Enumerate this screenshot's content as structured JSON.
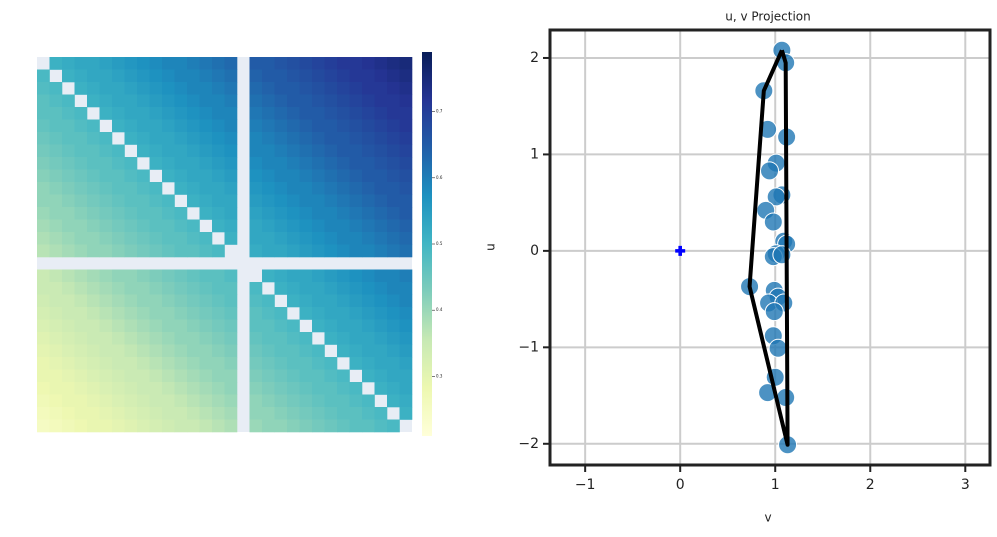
{
  "chart_data": [
    {
      "type": "heatmap",
      "colormap": "YlGnBu",
      "null_color": "#e8edf5",
      "zlim": [
        0.21,
        0.79
      ],
      "zticks": [
        0.3,
        0.4,
        0.5,
        0.6,
        0.7
      ],
      "values": [
        [
          null,
          0.51,
          0.52,
          0.53,
          0.53,
          0.54,
          0.55,
          0.56,
          0.57,
          0.58,
          0.59,
          0.59,
          0.6,
          0.61,
          0.62,
          0.63,
          null,
          0.65,
          0.65,
          0.66,
          0.67,
          0.68,
          0.69,
          0.7,
          0.71,
          0.71,
          0.72,
          0.73,
          0.74,
          0.75
        ],
        [
          0.49,
          null,
          0.51,
          0.52,
          0.53,
          0.53,
          0.54,
          0.55,
          0.56,
          0.57,
          0.58,
          0.59,
          0.59,
          0.6,
          0.61,
          0.62,
          null,
          0.64,
          0.65,
          0.65,
          0.66,
          0.67,
          0.68,
          0.69,
          0.7,
          0.71,
          0.71,
          0.72,
          0.73,
          0.74
        ],
        [
          0.48,
          0.49,
          null,
          0.51,
          0.52,
          0.53,
          0.53,
          0.54,
          0.55,
          0.56,
          0.57,
          0.58,
          0.59,
          0.59,
          0.6,
          0.61,
          null,
          0.63,
          0.64,
          0.65,
          0.65,
          0.66,
          0.67,
          0.68,
          0.69,
          0.7,
          0.71,
          0.71,
          0.72,
          0.73
        ],
        [
          0.47,
          0.48,
          0.49,
          null,
          0.51,
          0.52,
          0.53,
          0.53,
          0.54,
          0.55,
          0.56,
          0.57,
          0.58,
          0.59,
          0.59,
          0.6,
          null,
          0.62,
          0.63,
          0.64,
          0.65,
          0.65,
          0.66,
          0.67,
          0.68,
          0.69,
          0.7,
          0.71,
          0.71,
          0.72
        ],
        [
          0.47,
          0.47,
          0.48,
          0.49,
          null,
          0.51,
          0.52,
          0.53,
          0.53,
          0.54,
          0.55,
          0.56,
          0.57,
          0.58,
          0.59,
          0.59,
          null,
          0.61,
          0.62,
          0.63,
          0.64,
          0.65,
          0.65,
          0.66,
          0.67,
          0.68,
          0.69,
          0.7,
          0.71,
          0.71
        ],
        [
          0.46,
          0.47,
          0.47,
          0.48,
          0.49,
          null,
          0.51,
          0.52,
          0.53,
          0.53,
          0.54,
          0.55,
          0.56,
          0.57,
          0.58,
          0.59,
          null,
          0.6,
          0.61,
          0.62,
          0.63,
          0.64,
          0.65,
          0.65,
          0.66,
          0.67,
          0.68,
          0.69,
          0.7,
          0.71
        ],
        [
          0.45,
          0.46,
          0.47,
          0.47,
          0.48,
          0.49,
          null,
          0.51,
          0.52,
          0.53,
          0.53,
          0.54,
          0.55,
          0.56,
          0.57,
          0.58,
          null,
          0.59,
          0.6,
          0.61,
          0.62,
          0.63,
          0.64,
          0.65,
          0.65,
          0.66,
          0.67,
          0.68,
          0.69,
          0.7
        ],
        [
          0.44,
          0.45,
          0.46,
          0.47,
          0.47,
          0.48,
          0.49,
          null,
          0.51,
          0.52,
          0.53,
          0.53,
          0.54,
          0.55,
          0.56,
          0.57,
          null,
          0.59,
          0.59,
          0.6,
          0.61,
          0.62,
          0.63,
          0.64,
          0.65,
          0.65,
          0.66,
          0.67,
          0.68,
          0.69
        ],
        [
          0.43,
          0.44,
          0.45,
          0.46,
          0.47,
          0.47,
          0.48,
          0.49,
          null,
          0.51,
          0.52,
          0.53,
          0.53,
          0.54,
          0.55,
          0.56,
          null,
          0.58,
          0.59,
          0.59,
          0.6,
          0.61,
          0.62,
          0.63,
          0.64,
          0.65,
          0.65,
          0.66,
          0.67,
          0.68
        ],
        [
          0.42,
          0.43,
          0.44,
          0.45,
          0.46,
          0.47,
          0.47,
          0.48,
          0.49,
          null,
          0.51,
          0.52,
          0.53,
          0.53,
          0.54,
          0.55,
          null,
          0.57,
          0.58,
          0.59,
          0.59,
          0.6,
          0.61,
          0.62,
          0.63,
          0.64,
          0.65,
          0.65,
          0.66,
          0.67
        ],
        [
          0.41,
          0.42,
          0.43,
          0.44,
          0.45,
          0.46,
          0.47,
          0.47,
          0.48,
          0.49,
          null,
          0.51,
          0.52,
          0.53,
          0.53,
          0.54,
          null,
          0.56,
          0.57,
          0.58,
          0.59,
          0.59,
          0.6,
          0.61,
          0.62,
          0.63,
          0.64,
          0.65,
          0.65,
          0.66
        ],
        [
          0.41,
          0.41,
          0.42,
          0.43,
          0.44,
          0.45,
          0.46,
          0.47,
          0.47,
          0.48,
          0.49,
          null,
          0.51,
          0.52,
          0.53,
          0.53,
          null,
          0.55,
          0.56,
          0.57,
          0.58,
          0.59,
          0.59,
          0.6,
          0.61,
          0.62,
          0.63,
          0.64,
          0.65,
          0.65
        ],
        [
          0.4,
          0.41,
          0.41,
          0.42,
          0.43,
          0.44,
          0.45,
          0.46,
          0.47,
          0.47,
          0.48,
          0.49,
          null,
          0.51,
          0.52,
          0.53,
          null,
          0.54,
          0.55,
          0.56,
          0.57,
          0.58,
          0.59,
          0.59,
          0.6,
          0.61,
          0.62,
          0.63,
          0.64,
          0.65
        ],
        [
          0.39,
          0.4,
          0.41,
          0.41,
          0.42,
          0.43,
          0.44,
          0.45,
          0.46,
          0.47,
          0.47,
          0.48,
          0.49,
          null,
          0.51,
          0.52,
          null,
          0.53,
          0.54,
          0.55,
          0.56,
          0.57,
          0.58,
          0.59,
          0.59,
          0.6,
          0.61,
          0.62,
          0.63,
          0.64
        ],
        [
          0.38,
          0.39,
          0.4,
          0.41,
          0.41,
          0.42,
          0.43,
          0.44,
          0.45,
          0.46,
          0.47,
          0.47,
          0.48,
          0.49,
          null,
          0.51,
          null,
          0.53,
          0.53,
          0.54,
          0.55,
          0.56,
          0.57,
          0.58,
          0.59,
          0.59,
          0.6,
          0.61,
          0.62,
          0.63
        ],
        [
          0.37,
          0.38,
          0.39,
          0.4,
          0.41,
          0.41,
          0.42,
          0.43,
          0.44,
          0.45,
          0.46,
          0.47,
          0.47,
          0.48,
          0.49,
          null,
          null,
          0.52,
          0.53,
          0.53,
          0.54,
          0.55,
          0.56,
          0.57,
          0.58,
          0.59,
          0.59,
          0.6,
          0.61,
          0.62
        ],
        [
          null,
          null,
          null,
          null,
          null,
          null,
          null,
          null,
          null,
          null,
          null,
          null,
          null,
          null,
          null,
          null,
          null,
          null,
          null,
          null,
          null,
          null,
          null,
          null,
          null,
          null,
          null,
          null,
          null,
          null
        ],
        [
          0.35,
          0.36,
          0.37,
          0.38,
          0.39,
          0.4,
          0.41,
          0.41,
          0.42,
          0.43,
          0.44,
          0.45,
          0.46,
          0.47,
          0.47,
          0.48,
          null,
          null,
          0.51,
          0.52,
          0.53,
          0.53,
          0.54,
          0.55,
          0.56,
          0.57,
          0.58,
          0.59,
          0.59,
          0.6
        ],
        [
          0.35,
          0.35,
          0.36,
          0.37,
          0.38,
          0.39,
          0.4,
          0.41,
          0.41,
          0.42,
          0.43,
          0.44,
          0.45,
          0.46,
          0.47,
          0.47,
          null,
          0.49,
          null,
          0.51,
          0.52,
          0.53,
          0.53,
          0.54,
          0.55,
          0.56,
          0.57,
          0.58,
          0.59,
          0.59
        ],
        [
          0.34,
          0.35,
          0.35,
          0.36,
          0.37,
          0.38,
          0.39,
          0.4,
          0.41,
          0.41,
          0.42,
          0.43,
          0.44,
          0.45,
          0.46,
          0.47,
          null,
          0.48,
          0.49,
          null,
          0.51,
          0.52,
          0.53,
          0.53,
          0.54,
          0.55,
          0.56,
          0.57,
          0.58,
          0.59
        ],
        [
          0.33,
          0.34,
          0.35,
          0.35,
          0.36,
          0.37,
          0.38,
          0.39,
          0.4,
          0.41,
          0.41,
          0.42,
          0.43,
          0.44,
          0.45,
          0.46,
          null,
          0.47,
          0.48,
          0.49,
          null,
          0.51,
          0.52,
          0.53,
          0.53,
          0.54,
          0.55,
          0.56,
          0.57,
          0.58
        ],
        [
          0.32,
          0.33,
          0.34,
          0.35,
          0.35,
          0.36,
          0.37,
          0.38,
          0.39,
          0.4,
          0.41,
          0.41,
          0.42,
          0.43,
          0.44,
          0.45,
          null,
          0.47,
          0.47,
          0.48,
          0.49,
          null,
          0.51,
          0.52,
          0.53,
          0.53,
          0.54,
          0.55,
          0.56,
          0.57
        ],
        [
          0.31,
          0.32,
          0.33,
          0.34,
          0.35,
          0.35,
          0.36,
          0.37,
          0.38,
          0.39,
          0.4,
          0.41,
          0.41,
          0.42,
          0.43,
          0.44,
          null,
          0.46,
          0.47,
          0.47,
          0.48,
          0.49,
          null,
          0.51,
          0.52,
          0.53,
          0.53,
          0.54,
          0.55,
          0.56
        ],
        [
          0.3,
          0.31,
          0.32,
          0.33,
          0.34,
          0.35,
          0.35,
          0.36,
          0.37,
          0.38,
          0.39,
          0.4,
          0.41,
          0.41,
          0.42,
          0.43,
          null,
          0.45,
          0.46,
          0.47,
          0.47,
          0.48,
          0.49,
          null,
          0.51,
          0.52,
          0.53,
          0.53,
          0.54,
          0.55
        ],
        [
          0.29,
          0.3,
          0.31,
          0.32,
          0.33,
          0.34,
          0.35,
          0.35,
          0.36,
          0.37,
          0.38,
          0.39,
          0.4,
          0.41,
          0.41,
          0.42,
          null,
          0.44,
          0.45,
          0.46,
          0.47,
          0.47,
          0.48,
          0.49,
          null,
          0.51,
          0.52,
          0.53,
          0.53,
          0.54
        ],
        [
          0.29,
          0.29,
          0.3,
          0.31,
          0.32,
          0.33,
          0.34,
          0.35,
          0.35,
          0.36,
          0.37,
          0.38,
          0.39,
          0.4,
          0.41,
          0.41,
          null,
          0.43,
          0.44,
          0.45,
          0.46,
          0.47,
          0.47,
          0.48,
          0.49,
          null,
          0.51,
          0.52,
          0.53,
          0.53
        ],
        [
          0.28,
          0.29,
          0.29,
          0.3,
          0.31,
          0.32,
          0.33,
          0.34,
          0.35,
          0.35,
          0.36,
          0.37,
          0.38,
          0.39,
          0.4,
          0.41,
          null,
          0.42,
          0.43,
          0.44,
          0.45,
          0.46,
          0.47,
          0.47,
          0.48,
          0.49,
          null,
          0.51,
          0.52,
          0.53
        ],
        [
          0.27,
          0.28,
          0.29,
          0.29,
          0.3,
          0.31,
          0.32,
          0.33,
          0.34,
          0.35,
          0.35,
          0.36,
          0.37,
          0.38,
          0.39,
          0.4,
          null,
          0.41,
          0.42,
          0.43,
          0.44,
          0.45,
          0.46,
          0.47,
          0.47,
          0.48,
          0.49,
          null,
          0.51,
          0.52
        ],
        [
          0.26,
          0.27,
          0.28,
          0.29,
          0.29,
          0.3,
          0.31,
          0.32,
          0.33,
          0.34,
          0.35,
          0.35,
          0.36,
          0.37,
          0.38,
          0.39,
          null,
          0.41,
          0.41,
          0.42,
          0.43,
          0.44,
          0.45,
          0.46,
          0.47,
          0.47,
          0.48,
          0.49,
          null,
          0.51
        ],
        [
          0.25,
          0.26,
          0.27,
          0.28,
          0.29,
          0.29,
          0.3,
          0.31,
          0.32,
          0.33,
          0.34,
          0.35,
          0.35,
          0.36,
          0.37,
          0.38,
          null,
          0.4,
          0.41,
          0.41,
          0.42,
          0.43,
          0.44,
          0.45,
          0.46,
          0.47,
          0.47,
          0.48,
          0.49,
          null
        ]
      ]
    },
    {
      "type": "scatter",
      "title": "u, v Projection",
      "x_label": "v",
      "y_label": "u",
      "xlim": [
        -1.37,
        3.26
      ],
      "ylim": [
        -2.22,
        2.29
      ],
      "xticks": [
        {
          "value": -1,
          "label": "−1"
        },
        0,
        1,
        2,
        3
      ],
      "yticks": [
        {
          "value": -2,
          "label": "−2"
        },
        {
          "value": -1,
          "label": "−1"
        },
        0,
        1,
        2
      ],
      "grid": true,
      "points": {
        "color": "#1f77b4",
        "x": [
          1.07,
          1.11,
          0.88,
          0.92,
          1.12,
          1.01,
          0.94,
          1.07,
          1.01,
          0.9,
          0.98,
          1.09,
          1.12,
          1.01,
          0.98,
          1.07,
          0.73,
          0.99,
          1.03,
          0.93,
          1.09,
          0.99,
          0.98,
          1.03,
          1.0,
          0.92,
          1.11,
          1.13
        ],
        "y": [
          2.08,
          1.95,
          1.66,
          1.26,
          1.18,
          0.91,
          0.83,
          0.58,
          0.56,
          0.42,
          0.3,
          0.1,
          0.07,
          -0.03,
          -0.06,
          -0.04,
          -0.37,
          -0.41,
          -0.48,
          -0.54,
          -0.54,
          -0.63,
          -0.88,
          -1.01,
          -1.31,
          -1.47,
          -1.52,
          -2.01
        ]
      },
      "hull": {
        "color": "#000000",
        "x": [
          1.07,
          1.11,
          1.13,
          0.73,
          0.88,
          1.07
        ],
        "y": [
          2.08,
          1.95,
          -2.01,
          -0.37,
          1.66,
          2.08
        ]
      },
      "origin_marker": {
        "color": "#0000ff",
        "x": 0,
        "y": 0
      }
    }
  ]
}
